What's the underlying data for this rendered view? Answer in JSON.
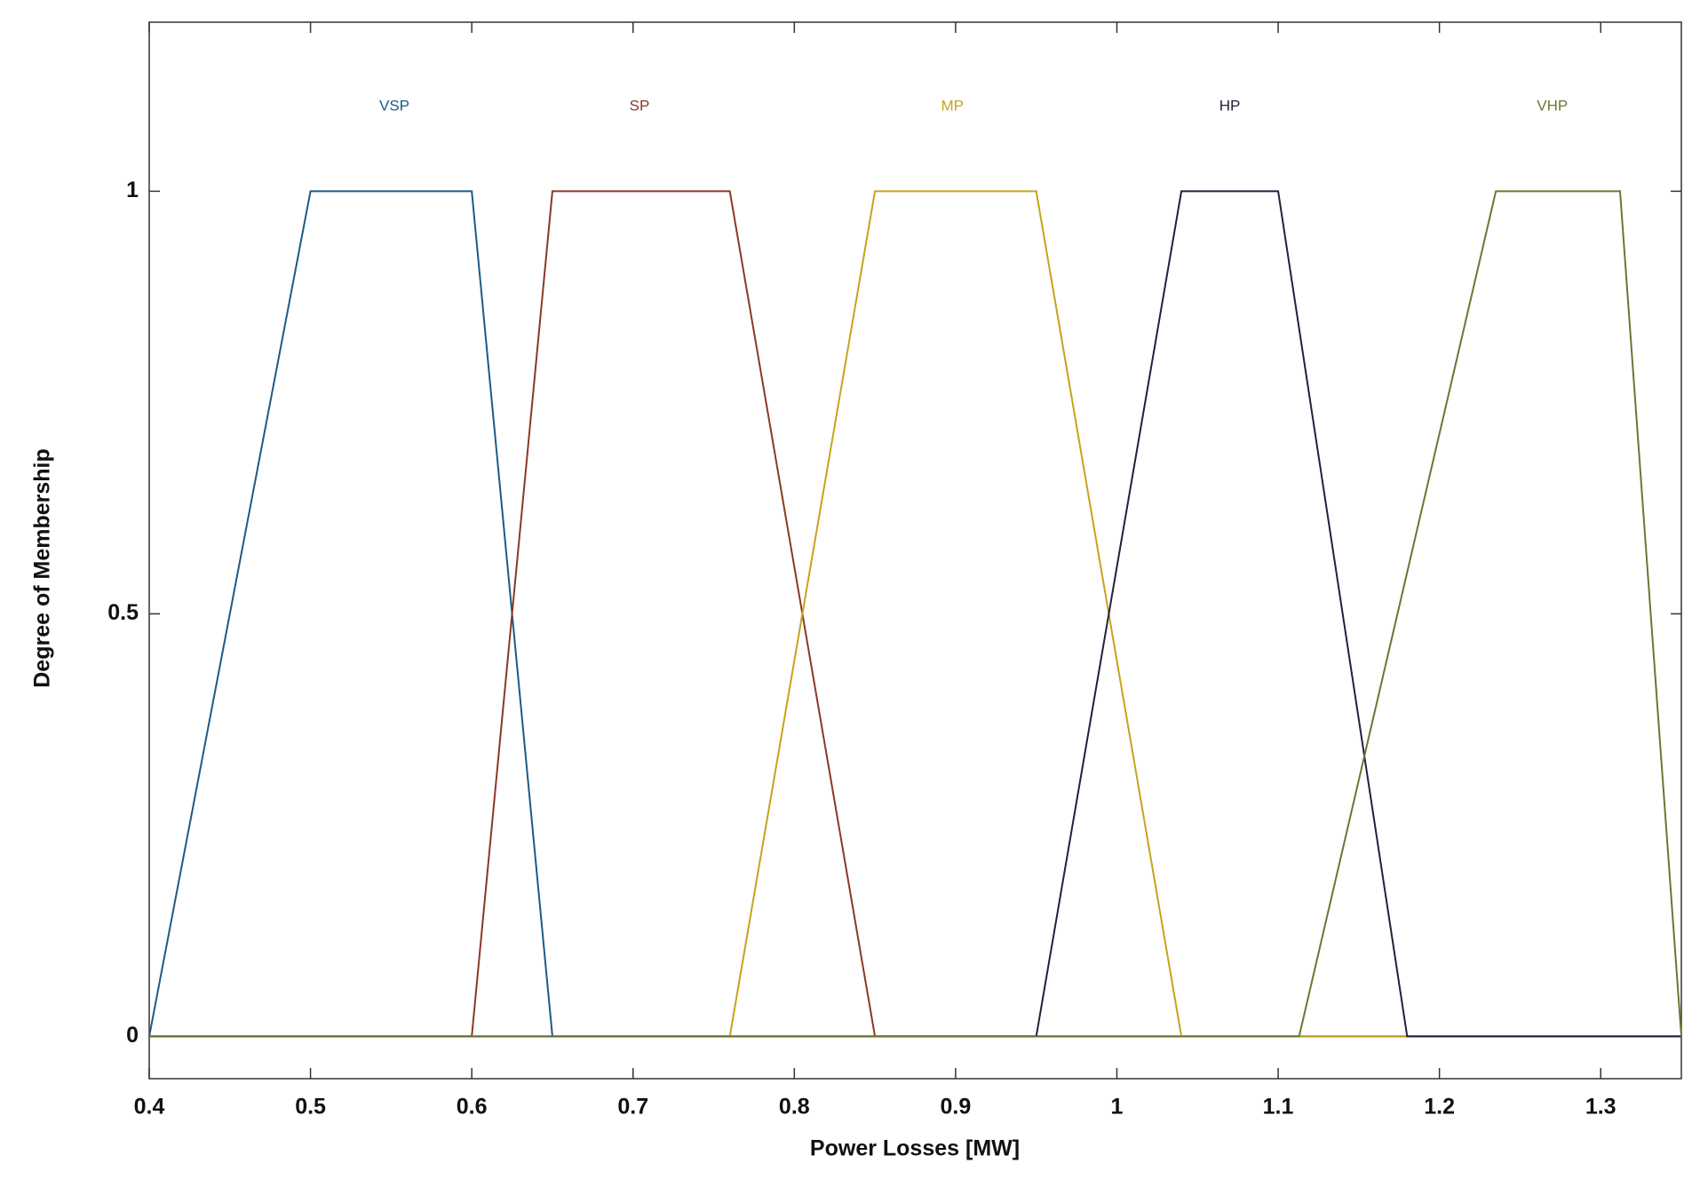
{
  "chart_data": {
    "type": "line",
    "xlabel": "Power Losses [MW]",
    "ylabel": "Degree of Membership",
    "xlim": [
      0.4,
      1.35
    ],
    "ylim": [
      -0.05,
      1.2
    ],
    "xticks": [
      0.4,
      0.5,
      0.6,
      0.7,
      0.8,
      0.9,
      1,
      1.1,
      1.2,
      1.3
    ],
    "yticks": [
      0,
      0.5,
      1
    ],
    "grid": false,
    "series": [
      {
        "name": "VSP",
        "color": "#1d5a86",
        "label_pos": [
          0.552,
          1.1
        ],
        "x": [
          0.4,
          0.5,
          0.6,
          0.65,
          1.35
        ],
        "values": [
          0,
          1,
          1,
          0,
          0
        ]
      },
      {
        "name": "SP",
        "color": "#8a3a22",
        "label_pos": [
          0.704,
          1.1
        ],
        "x": [
          0.4,
          0.6,
          0.65,
          0.76,
          0.85,
          1.35
        ],
        "values": [
          0,
          0,
          1,
          1,
          0,
          0
        ]
      },
      {
        "name": "MP",
        "color": "#c9a21e",
        "label_pos": [
          0.898,
          1.1
        ],
        "x": [
          0.4,
          0.76,
          0.85,
          0.95,
          1.04,
          1.35
        ],
        "values": [
          0,
          0,
          1,
          1,
          0,
          0
        ]
      },
      {
        "name": "HP",
        "color": "#23203f",
        "label_pos": [
          1.07,
          1.1
        ],
        "x": [
          0.4,
          0.95,
          1.04,
          1.1,
          1.18,
          1.35
        ],
        "values": [
          0,
          0,
          1,
          1,
          0,
          0
        ]
      },
      {
        "name": "VHP",
        "color": "#6b7636",
        "label_pos": [
          1.27,
          1.1
        ],
        "x": [
          0.4,
          1.113,
          1.235,
          1.312,
          1.35
        ],
        "values": [
          0,
          0,
          1,
          1,
          0
        ]
      }
    ]
  }
}
